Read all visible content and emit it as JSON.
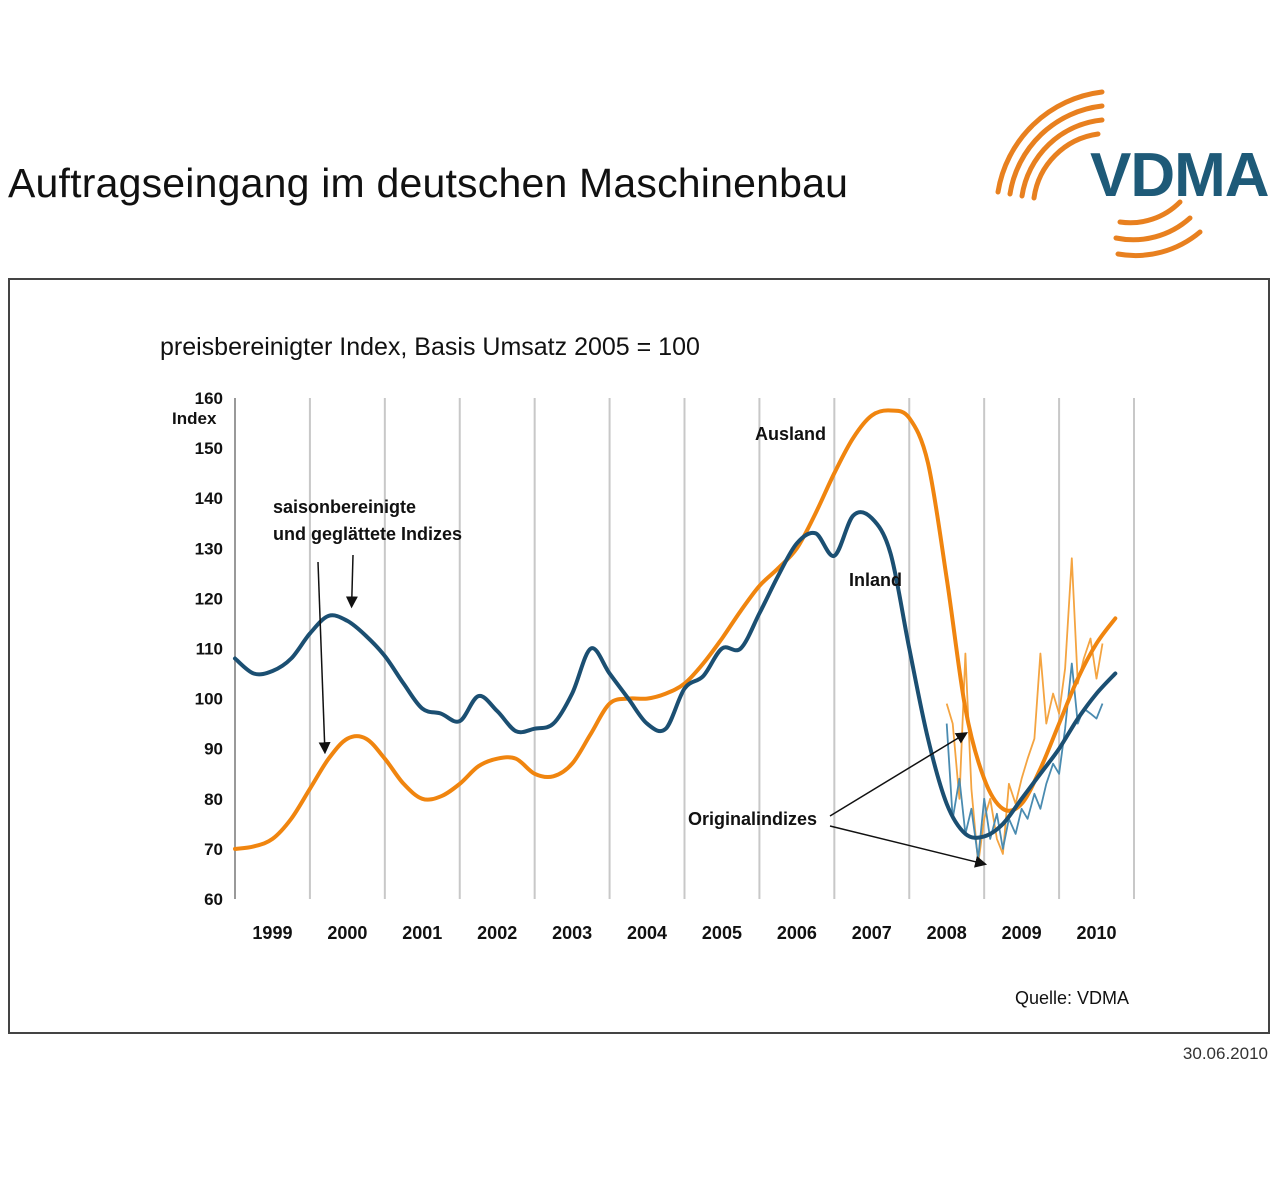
{
  "page": {
    "title": "Auftragseingang im deutschen Maschinenbau",
    "date": "30.06.2010"
  },
  "logo": {
    "text": "VDMA",
    "text_color": "#1e5a78",
    "arc_color": "#e8801f"
  },
  "chart_data": {
    "type": "line",
    "subtitle": "preisbereinigter Index, Basis Umsatz 2005 = 100",
    "ylabel": "Index",
    "ylim": [
      60,
      160
    ],
    "yticks": [
      60,
      70,
      80,
      90,
      100,
      110,
      120,
      130,
      140,
      150,
      160
    ],
    "xlim": [
      1999.0,
      2011.0
    ],
    "year_labels": [
      "1999",
      "2000",
      "2001",
      "2002",
      "2003",
      "2004",
      "2005",
      "2006",
      "2007",
      "2008",
      "2009",
      "2010"
    ],
    "grid": "vertical",
    "source": "Quelle: VDMA",
    "colors": {
      "ausland": "#f0850f",
      "inland": "#1b4f72"
    },
    "series": [
      {
        "name": "Ausland",
        "color": "#f0850f",
        "x": [
          1999.0,
          1999.25,
          1999.5,
          1999.75,
          2000.0,
          2000.25,
          2000.5,
          2000.75,
          2001.0,
          2001.25,
          2001.5,
          2001.75,
          2002.0,
          2002.25,
          2002.5,
          2002.75,
          2003.0,
          2003.25,
          2003.5,
          2003.75,
          2004.0,
          2004.25,
          2004.5,
          2004.75,
          2005.0,
          2005.25,
          2005.5,
          2005.75,
          2006.0,
          2006.25,
          2006.5,
          2006.75,
          2007.0,
          2007.25,
          2007.5,
          2007.75,
          2008.0,
          2008.25,
          2008.5,
          2008.75,
          2009.0,
          2009.25,
          2009.5,
          2009.75,
          2010.0,
          2010.25,
          2010.5,
          2010.75
        ],
        "values": [
          70,
          70.5,
          72,
          76,
          82,
          88,
          92,
          92,
          88,
          83,
          80,
          80.5,
          83,
          86.5,
          88,
          88,
          85,
          84.5,
          87,
          93,
          99,
          100,
          100,
          101,
          103,
          107,
          112,
          117.5,
          122.5,
          126,
          130,
          137,
          145,
          152,
          156.5,
          157.5,
          156,
          147,
          124,
          98,
          84,
          78,
          79,
          86,
          95,
          104,
          111,
          116
        ]
      },
      {
        "name": "Inland",
        "color": "#1b4f72",
        "x": [
          1999.0,
          1999.25,
          1999.5,
          1999.75,
          2000.0,
          2000.25,
          2000.5,
          2000.75,
          2001.0,
          2001.25,
          2001.5,
          2001.75,
          2002.0,
          2002.25,
          2002.5,
          2002.75,
          2003.0,
          2003.25,
          2003.5,
          2003.75,
          2004.0,
          2004.25,
          2004.5,
          2004.75,
          2005.0,
          2005.25,
          2005.5,
          2005.75,
          2006.0,
          2006.25,
          2006.5,
          2006.75,
          2007.0,
          2007.25,
          2007.5,
          2007.75,
          2008.0,
          2008.25,
          2008.5,
          2008.75,
          2009.0,
          2009.25,
          2009.5,
          2009.75,
          2010.0,
          2010.25,
          2010.5,
          2010.75
        ],
        "values": [
          108,
          105,
          105.5,
          108,
          113,
          116.5,
          115.5,
          112.5,
          108.5,
          103,
          98,
          97,
          95.5,
          100.5,
          97.5,
          93.5,
          94,
          95,
          101,
          110,
          105,
          100,
          95,
          94,
          102,
          104.5,
          110,
          110,
          117,
          124.5,
          131,
          133,
          128.5,
          136.5,
          136,
          129,
          110,
          92,
          79,
          73,
          72.5,
          75,
          80,
          85,
          90,
          96,
          101,
          105
        ]
      },
      {
        "name": "",
        "color": "#f4a441",
        "x": [
          2008.5,
          2008.58,
          2008.67,
          2008.75,
          2008.83,
          2008.92,
          2009.0,
          2009.08,
          2009.17,
          2009.25,
          2009.33,
          2009.42,
          2009.5,
          2009.58,
          2009.67,
          2009.75,
          2009.83,
          2009.92,
          2010.0,
          2010.08,
          2010.17,
          2010.25,
          2010.33,
          2010.42,
          2010.5,
          2010.58
        ],
        "values": [
          99,
          95,
          80,
          109,
          82,
          67,
          76,
          80,
          72,
          69,
          83,
          79,
          84,
          88,
          92,
          109,
          95,
          101,
          97,
          106,
          128,
          103,
          108,
          112,
          104,
          111
        ]
      },
      {
        "name": "",
        "color": "#4a8bb0",
        "x": [
          2008.5,
          2008.58,
          2008.67,
          2008.75,
          2008.83,
          2008.92,
          2009.0,
          2009.08,
          2009.17,
          2009.25,
          2009.33,
          2009.42,
          2009.5,
          2009.58,
          2009.67,
          2009.75,
          2009.83,
          2009.92,
          2010.0,
          2010.08,
          2010.17,
          2010.25,
          2010.33,
          2010.42,
          2010.5,
          2010.58
        ],
        "values": [
          95,
          76,
          84,
          73,
          78,
          68,
          80,
          72,
          77,
          70,
          76,
          73,
          78,
          76,
          81,
          78,
          83,
          87,
          85,
          94,
          107,
          95,
          98,
          97,
          96,
          99
        ]
      }
    ],
    "annotations": {
      "ausland": "Ausland",
      "inland": "Inland",
      "smoothed_line1": "saisonbereinigte",
      "smoothed_line2": "und geglättete Indizes",
      "original": "Originalindizes"
    }
  }
}
